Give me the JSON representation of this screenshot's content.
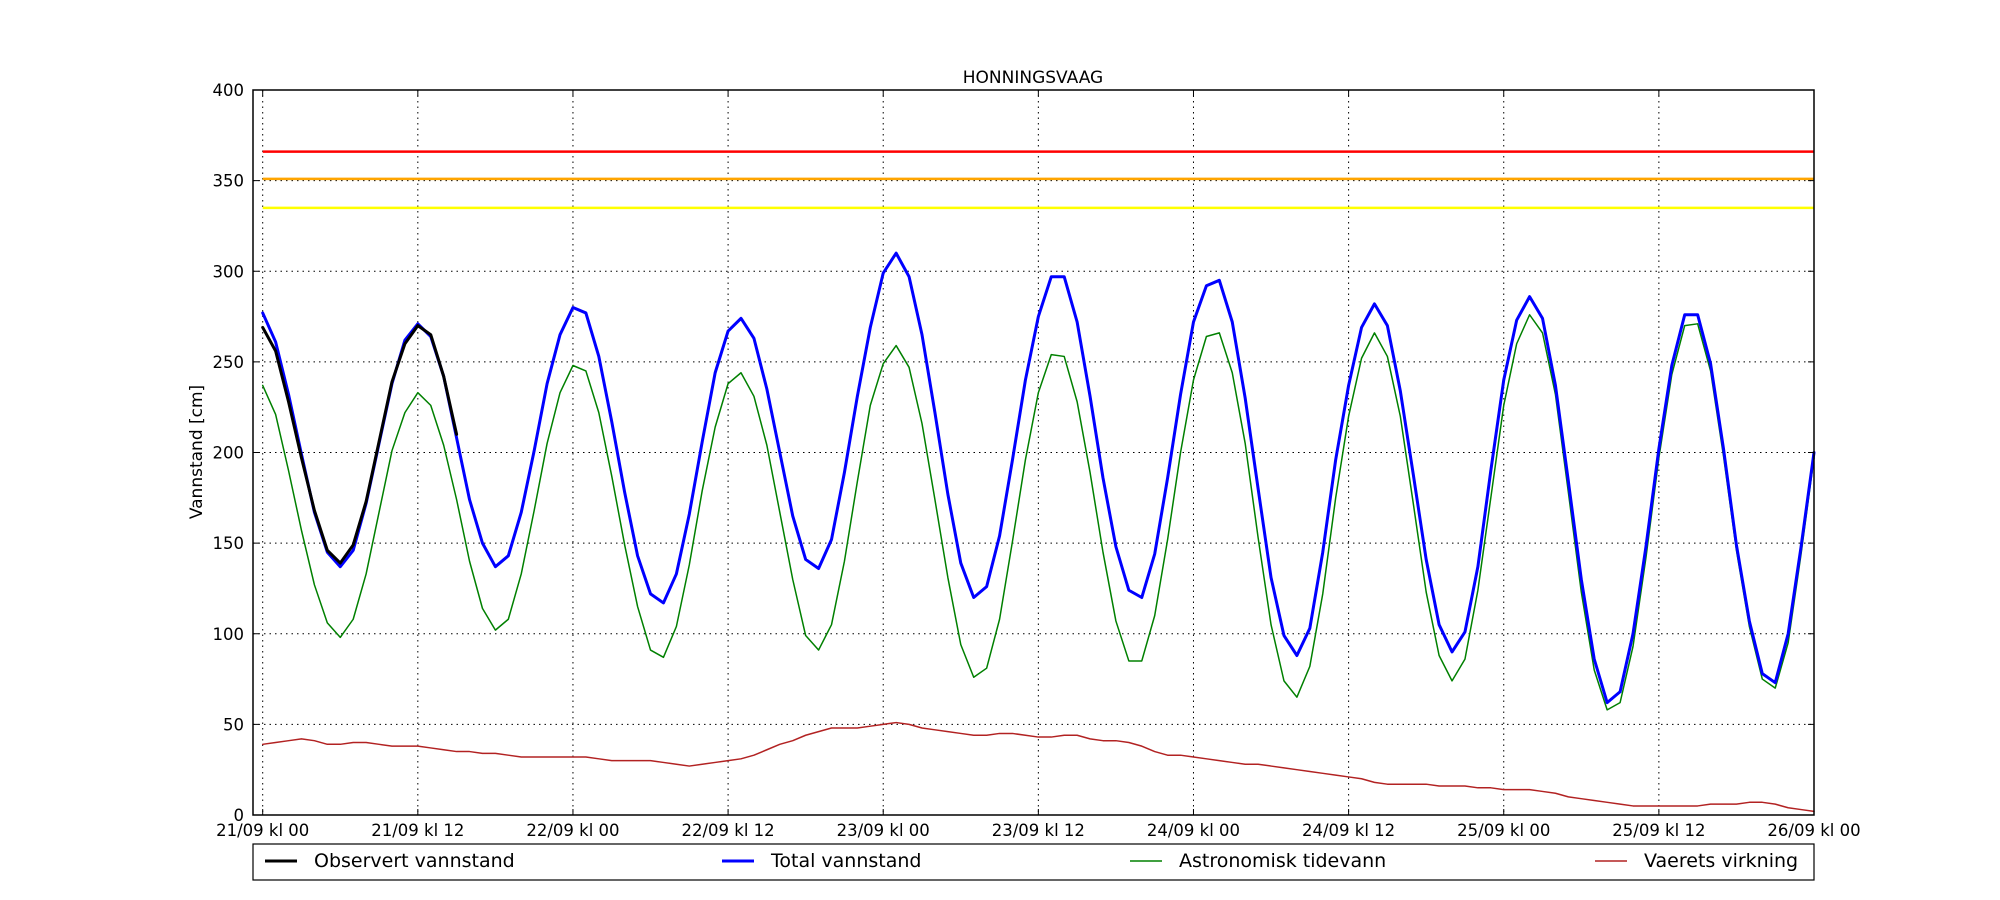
{
  "chart_data": {
    "type": "line",
    "title": "HONNINGSVAAG",
    "xlabel": "",
    "ylabel": "Vannstand [cm]",
    "ylim": [
      0,
      400
    ],
    "xlim": [
      -0.75,
      120
    ],
    "x_unit": "hours since 21/09 kl 00",
    "x_ticks": [
      0,
      12,
      24,
      36,
      48,
      60,
      72,
      84,
      96,
      108,
      120
    ],
    "x_tick_labels": [
      "21/09 kl 00",
      "21/09 kl 12",
      "22/09 kl 00",
      "22/09 kl 12",
      "23/09 kl 00",
      "23/09 kl 12",
      "24/09 kl 00",
      "24/09 kl 12",
      "25/09 kl 00",
      "25/09 kl 12",
      "26/09 kl 00"
    ],
    "y_ticks": [
      0,
      50,
      100,
      150,
      200,
      250,
      300,
      350,
      400
    ],
    "grid": true,
    "legend_position": "bottom, outside plot",
    "threshold_lines": [
      {
        "y": 366,
        "color": "#ff0000"
      },
      {
        "y": 351,
        "color": "#ffa500"
      },
      {
        "y": 335,
        "color": "#ffff00"
      }
    ],
    "series": [
      {
        "name": "Observert vannstand",
        "color": "#000000",
        "width": 3,
        "x": [
          0,
          1,
          2,
          3,
          4,
          5,
          6,
          7,
          8,
          9,
          10,
          11,
          12,
          13,
          14,
          15
        ],
        "values": [
          269,
          256,
          228,
          197,
          168,
          146,
          139,
          149,
          173,
          206,
          239,
          260,
          270,
          265,
          242,
          210
        ]
      },
      {
        "name": "Total vannstand",
        "color": "#0000ff",
        "width": 3,
        "x": [
          0,
          1,
          2,
          3,
          4,
          5,
          6,
          7,
          8,
          9,
          10,
          11,
          12,
          13,
          14,
          15,
          16,
          17,
          18,
          19,
          20,
          21,
          22,
          23,
          24,
          25,
          26,
          27,
          28,
          29,
          30,
          31,
          32,
          33,
          34,
          35,
          36,
          37,
          38,
          39,
          40,
          41,
          42,
          43,
          44,
          45,
          46,
          47,
          48,
          49,
          50,
          51,
          52,
          53,
          54,
          55,
          56,
          57,
          58,
          59,
          60,
          61,
          62,
          63,
          64,
          65,
          66,
          67,
          68,
          69,
          70,
          71,
          72,
          73,
          74,
          75,
          76,
          77,
          78,
          79,
          80,
          81,
          82,
          83,
          84,
          85,
          86,
          87,
          88,
          89,
          90,
          91,
          92,
          93,
          94,
          95,
          96,
          97,
          98,
          99,
          100,
          101,
          102,
          103,
          104,
          105,
          106,
          107,
          108,
          109,
          110,
          111,
          112,
          113,
          114,
          115,
          116,
          117,
          118,
          119,
          120
        ],
        "values": [
          277,
          261,
          232,
          199,
          167,
          145,
          137,
          146,
          172,
          205,
          238,
          262,
          271,
          264,
          242,
          208,
          174,
          150,
          137,
          143,
          167,
          201,
          238,
          265,
          280,
          277,
          253,
          217,
          178,
          143,
          122,
          117,
          133,
          166,
          206,
          244,
          267,
          274,
          263,
          235,
          200,
          165,
          141,
          136,
          152,
          189,
          231,
          269,
          299,
          310,
          297,
          265,
          222,
          177,
          139,
          120,
          126,
          154,
          196,
          240,
          275,
          297,
          297,
          272,
          231,
          186,
          148,
          124,
          120,
          144,
          186,
          232,
          272,
          292,
          295,
          272,
          230,
          180,
          131,
          99,
          88,
          103,
          145,
          196,
          237,
          269,
          282,
          270,
          234,
          188,
          141,
          105,
          90,
          101,
          137,
          190,
          240,
          273,
          286,
          274,
          237,
          184,
          130,
          86,
          62,
          68,
          100,
          148,
          202,
          248,
          276,
          276,
          249,
          202,
          149,
          107,
          78,
          73,
          100,
          148,
          200
        ]
      },
      {
        "name": "Astronomisk tidevann",
        "color": "#008000",
        "width": 1.5,
        "x": [
          0,
          1,
          2,
          3,
          4,
          5,
          6,
          7,
          8,
          9,
          10,
          11,
          12,
          13,
          14,
          15,
          16,
          17,
          18,
          19,
          20,
          21,
          22,
          23,
          24,
          25,
          26,
          27,
          28,
          29,
          30,
          31,
          32,
          33,
          34,
          35,
          36,
          37,
          38,
          39,
          40,
          41,
          42,
          43,
          44,
          45,
          46,
          47,
          48,
          49,
          50,
          51,
          52,
          53,
          54,
          55,
          56,
          57,
          58,
          59,
          60,
          61,
          62,
          63,
          64,
          65,
          66,
          67,
          68,
          69,
          70,
          71,
          72,
          73,
          74,
          75,
          76,
          77,
          78,
          79,
          80,
          81,
          82,
          83,
          84,
          85,
          86,
          87,
          88,
          89,
          90,
          91,
          92,
          93,
          94,
          95,
          96,
          97,
          98,
          99,
          100,
          101,
          102,
          103,
          104,
          105,
          106,
          107,
          108,
          109,
          110,
          111,
          112,
          113,
          114,
          115,
          116,
          117,
          118,
          119,
          120
        ],
        "values": [
          237,
          221,
          190,
          157,
          127,
          106,
          98,
          108,
          133,
          167,
          201,
          222,
          233,
          226,
          204,
          174,
          140,
          114,
          102,
          108,
          133,
          168,
          205,
          233,
          248,
          245,
          222,
          187,
          149,
          115,
          91,
          87,
          104,
          138,
          179,
          214,
          238,
          244,
          231,
          204,
          167,
          130,
          99,
          91,
          105,
          140,
          184,
          226,
          249,
          259,
          247,
          216,
          174,
          131,
          94,
          76,
          81,
          108,
          151,
          196,
          233,
          254,
          253,
          228,
          189,
          145,
          107,
          85,
          85,
          110,
          152,
          200,
          240,
          264,
          266,
          244,
          205,
          153,
          105,
          74,
          65,
          82,
          122,
          175,
          220,
          252,
          266,
          253,
          220,
          172,
          123,
          88,
          74,
          86,
          124,
          175,
          226,
          260,
          276,
          266,
          232,
          178,
          123,
          80,
          58,
          62,
          93,
          142,
          197,
          243,
          270,
          271,
          245,
          198,
          146,
          104,
          75,
          70,
          95,
          144,
          197
        ]
      },
      {
        "name": "Vaerets virkning",
        "color": "#b22222",
        "width": 1.5,
        "x": [
          0,
          1,
          2,
          3,
          4,
          5,
          6,
          7,
          8,
          9,
          10,
          11,
          12,
          13,
          14,
          15,
          16,
          17,
          18,
          19,
          20,
          21,
          22,
          23,
          24,
          25,
          26,
          27,
          28,
          29,
          30,
          31,
          32,
          33,
          34,
          35,
          36,
          37,
          38,
          39,
          40,
          41,
          42,
          43,
          44,
          45,
          46,
          47,
          48,
          49,
          50,
          51,
          52,
          53,
          54,
          55,
          56,
          57,
          58,
          59,
          60,
          61,
          62,
          63,
          64,
          65,
          66,
          67,
          68,
          69,
          70,
          71,
          72,
          73,
          74,
          75,
          76,
          77,
          78,
          79,
          80,
          81,
          82,
          83,
          84,
          85,
          86,
          87,
          88,
          89,
          90,
          91,
          92,
          93,
          94,
          95,
          96,
          97,
          98,
          99,
          100,
          101,
          102,
          103,
          104,
          105,
          106,
          107,
          108,
          109,
          110,
          111,
          112,
          113,
          114,
          115,
          116,
          117,
          118,
          119,
          120
        ],
        "values": [
          39,
          40,
          41,
          42,
          41,
          39,
          39,
          40,
          40,
          39,
          38,
          38,
          38,
          37,
          36,
          35,
          35,
          34,
          34,
          33,
          32,
          32,
          32,
          32,
          32,
          32,
          31,
          30,
          30,
          30,
          30,
          29,
          28,
          27,
          28,
          29,
          30,
          31,
          33,
          36,
          39,
          41,
          44,
          46,
          48,
          48,
          48,
          49,
          50,
          51,
          50,
          48,
          47,
          46,
          45,
          44,
          44,
          45,
          45,
          44,
          43,
          43,
          44,
          44,
          42,
          41,
          41,
          40,
          38,
          35,
          33,
          33,
          32,
          31,
          30,
          29,
          28,
          28,
          27,
          26,
          25,
          24,
          23,
          22,
          21,
          20,
          18,
          17,
          17,
          17,
          17,
          16,
          16,
          16,
          15,
          15,
          14,
          14,
          14,
          13,
          12,
          10,
          9,
          8,
          7,
          6,
          5,
          5,
          5,
          5,
          5,
          5,
          6,
          6,
          6,
          7,
          7,
          6,
          4,
          3,
          2
        ]
      }
    ]
  }
}
